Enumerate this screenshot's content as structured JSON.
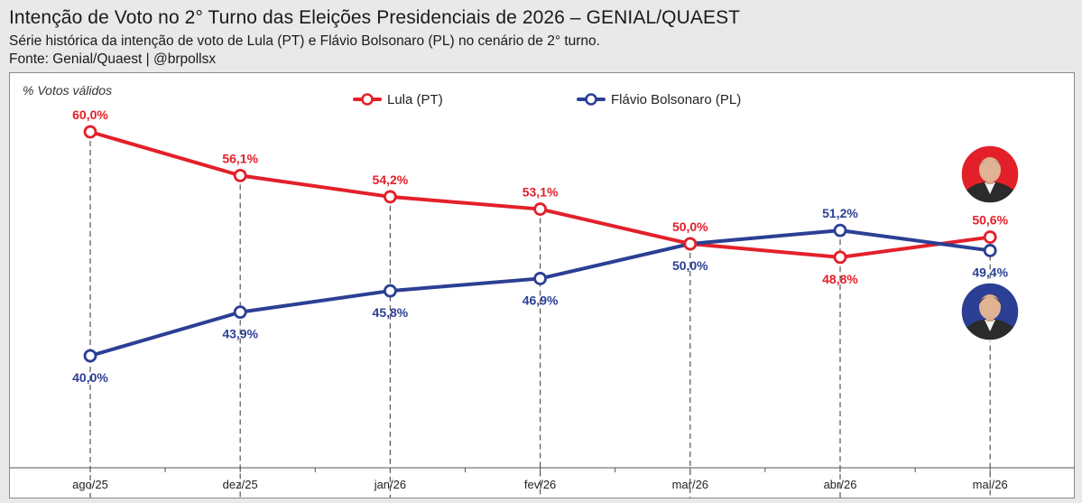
{
  "header": {
    "title": "Intenção de Voto no 2° Turno das Eleições Presidenciais de 2026 – GENIAL/QUAEST",
    "subtitle": "Série histórica da intenção de voto de Lula (PT) e Flávio Bolsonaro (PL) no cenário de 2° turno.",
    "source": "Fonte: Genial/Quaest | @brpollsx"
  },
  "chart_data": {
    "type": "line",
    "ylabel": "% Votos válidos",
    "categories": [
      "ago/25",
      "dez/25",
      "jan/26",
      "fev/26",
      "mar/26",
      "abr/26",
      "mai/26"
    ],
    "ylim": [
      35,
      62
    ],
    "grid": false,
    "legend": "top-center",
    "series": [
      {
        "name": "Lula (PT)",
        "color": "#e3202a",
        "values": [
          60.0,
          56.1,
          54.2,
          53.1,
          50.0,
          48.8,
          50.6
        ],
        "labels": [
          "60,0%",
          "56,1%",
          "54,2%",
          "53,1%",
          "50,0%",
          "48,8%",
          "50,6%"
        ],
        "label_side": [
          "above",
          "above",
          "above",
          "above",
          "above",
          "below",
          "above"
        ]
      },
      {
        "name": "Flávio Bolsonaro (PL)",
        "color": "#2b3f94",
        "values": [
          40.0,
          43.9,
          45.8,
          46.9,
          50.0,
          51.2,
          49.4
        ],
        "labels": [
          "40,0%",
          "43,9%",
          "45,8%",
          "46,9%",
          "50,0%",
          "51,2%",
          "49,4%"
        ],
        "label_side": [
          "below",
          "below",
          "below",
          "below",
          "below",
          "above",
          "below"
        ]
      }
    ],
    "avatars": [
      {
        "series": "Lula (PT)",
        "background": "#e3202a"
      },
      {
        "series": "Flávio Bolsonaro (PL)",
        "background": "#2b3f94"
      }
    ]
  }
}
